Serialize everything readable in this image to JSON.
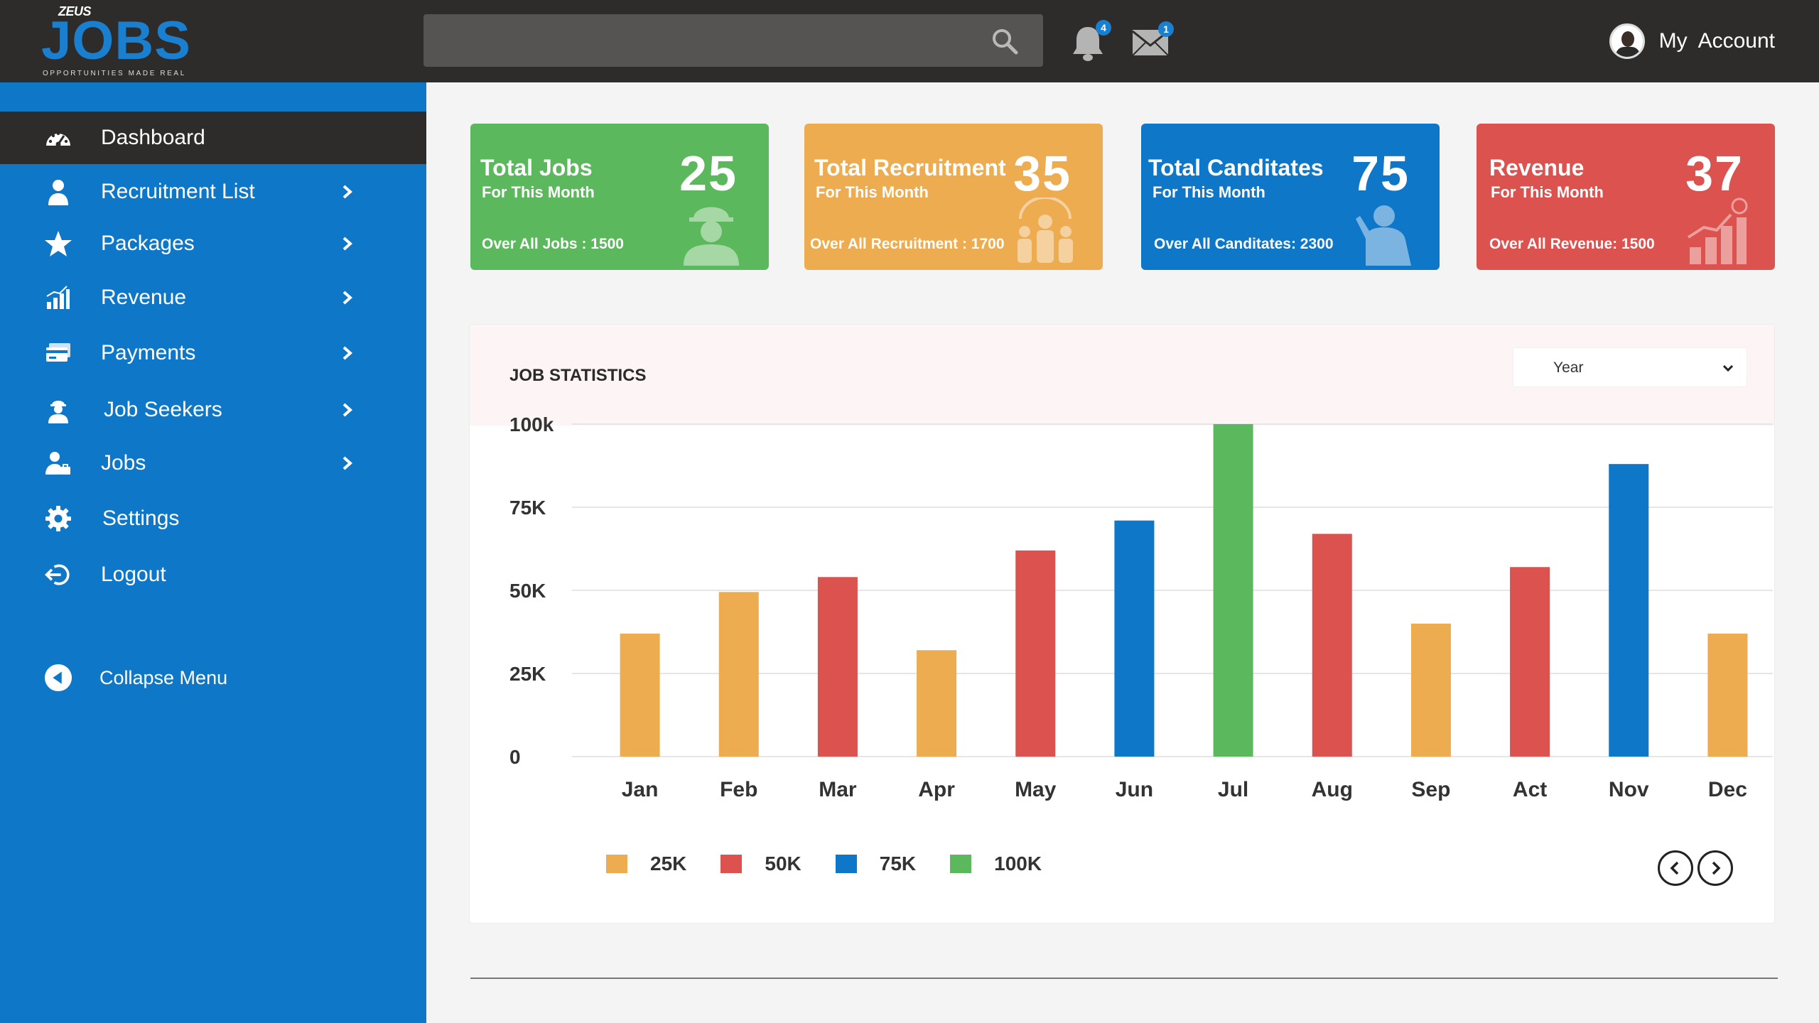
{
  "brand": {
    "small": "ZEUS",
    "name": "JOBS",
    "tagline": "OPPORTUNITIES MADE REAL"
  },
  "header": {
    "search": {
      "placeholder": "",
      "icon": "search-icon"
    },
    "notifications": {
      "icon": "bell-icon",
      "count": "4"
    },
    "messages": {
      "icon": "mail-icon",
      "count": "1"
    },
    "account": {
      "label": "My  Account",
      "icon": "avatar"
    }
  },
  "sidebar": {
    "items": [
      {
        "label": "Dashboard",
        "icon": "dashboard-gauge-icon",
        "active": true,
        "has_submenu": false
      },
      {
        "label": "Recruitment List",
        "icon": "user-icon",
        "active": false,
        "has_submenu": true
      },
      {
        "label": "Packages",
        "icon": "star-icon",
        "active": false,
        "has_submenu": true
      },
      {
        "label": "Revenue",
        "icon": "bar-chart-icon",
        "active": false,
        "has_submenu": true
      },
      {
        "label": "Payments",
        "icon": "credit-card-icon",
        "active": false,
        "has_submenu": true
      },
      {
        "label": "Job Seekers",
        "icon": "worker-icon",
        "active": false,
        "has_submenu": true
      },
      {
        "label": "Jobs",
        "icon": "user-briefcase-icon",
        "active": false,
        "has_submenu": true
      },
      {
        "label": "Settings",
        "icon": "gear-icon",
        "active": false,
        "has_submenu": false
      },
      {
        "label": "Logout",
        "icon": "logout-icon",
        "active": false,
        "has_submenu": false
      }
    ],
    "collapse_label": "Collapse Menu"
  },
  "cards": [
    {
      "title": "Total Jobs",
      "subtitle": "For This Month",
      "value": "25",
      "footer": "Over All Jobs : 1500",
      "color": "#5cb85c",
      "icon": "worker-helmet-icon"
    },
    {
      "title": "Total Recruitment",
      "subtitle": "For This Month",
      "value": "35",
      "footer": "Over All Recruitment : 1700",
      "color": "#ecac4f",
      "icon": "group-icon"
    },
    {
      "title": "Total Canditates",
      "subtitle": "For This Month",
      "value": "75",
      "footer": "Over All Canditates: 2300",
      "color": "#0f77c8",
      "icon": "person-raising-hand-icon"
    },
    {
      "title": "Revenue",
      "subtitle": "For This Month",
      "value": "37",
      "footer": "Over All Revenue: 1500",
      "color": "#dc524f",
      "icon": "revenue-growth-icon"
    }
  ],
  "job_statistics": {
    "title": "JOB STATISTICS",
    "period_select": {
      "value": "Year"
    },
    "legend": [
      {
        "label": "25K",
        "color": "#ecac4f"
      },
      {
        "label": "50K",
        "color": "#dc524f"
      },
      {
        "label": "75K",
        "color": "#0f77c8"
      },
      {
        "label": "100K",
        "color": "#5cb85c"
      }
    ],
    "pager": {
      "prev_icon": "chevron-left-icon",
      "next_icon": "chevron-right-icon"
    }
  },
  "chart_data": {
    "type": "bar",
    "title": "JOB STATISTICS",
    "categories": [
      "Jan",
      "Feb",
      "Mar",
      "Apr",
      "May",
      "Jun",
      "Jul",
      "Aug",
      "Sep",
      "Act",
      "Nov",
      "Dec"
    ],
    "values": [
      37000,
      49500,
      54000,
      32000,
      62000,
      71000,
      100000,
      67000,
      40000,
      57000,
      88000,
      37000
    ],
    "bar_colors": [
      "#ecac4f",
      "#ecac4f",
      "#dc524f",
      "#ecac4f",
      "#dc524f",
      "#0f77c8",
      "#5cb85c",
      "#dc524f",
      "#ecac4f",
      "#dc524f",
      "#0f77c8",
      "#ecac4f"
    ],
    "y_ticks": [
      {
        "value": 0,
        "label": "0"
      },
      {
        "value": 25000,
        "label": "25K"
      },
      {
        "value": 50000,
        "label": "50K"
      },
      {
        "value": 75000,
        "label": "75K"
      },
      {
        "value": 100000,
        "label": "100k"
      }
    ],
    "ylim": [
      0,
      100000
    ],
    "grid": true,
    "legend_position": "bottom-left"
  }
}
